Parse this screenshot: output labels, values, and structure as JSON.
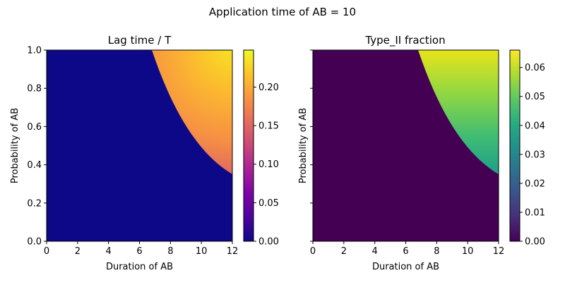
{
  "figure": {
    "suptitle": "Application time of AB = 10"
  },
  "chart_data": [
    {
      "type": "heatmap",
      "title": "Lag time / T",
      "xlabel": "Duration of AB",
      "ylabel": "Probability of AB",
      "xlim": [
        0,
        12
      ],
      "ylim": [
        0,
        1
      ],
      "xticks": [
        "0",
        "2",
        "4",
        "6",
        "8",
        "10",
        "12"
      ],
      "yticks": [
        "0.0",
        "0.2",
        "0.4",
        "0.6",
        "0.8",
        "1.0"
      ],
      "colormap": "plasma",
      "colorbar": {
        "range": [
          0,
          0.248
        ],
        "ticks": [
          "0.00",
          "0.05",
          "0.10",
          "0.15",
          "0.20"
        ]
      },
      "region_boundary": {
        "x": [
          6.8,
          7.5,
          8,
          9,
          10,
          11,
          12
        ],
        "y": [
          1.0,
          0.84,
          0.75,
          0.61,
          0.51,
          0.42,
          0.35
        ]
      },
      "inside_region": {
        "value_at_boundary": 0.13,
        "value_at_corner_12_1": 0.248
      },
      "outside_region_value": 0.0
    },
    {
      "type": "heatmap",
      "title": "Type_II fraction",
      "xlabel": "Duration of AB",
      "ylabel": "Probability of AB",
      "xlim": [
        0,
        12
      ],
      "ylim": [
        0,
        1
      ],
      "xticks": [
        "0",
        "2",
        "4",
        "6",
        "8",
        "10",
        "12"
      ],
      "yticks": [
        "0.0",
        "0.2",
        "0.4",
        "0.6",
        "0.8",
        "1.0"
      ],
      "colormap": "viridis",
      "colorbar": {
        "range": [
          0,
          0.066
        ],
        "ticks": [
          "0.00",
          "0.01",
          "0.02",
          "0.03",
          "0.04",
          "0.05",
          "0.06"
        ]
      },
      "region_boundary": {
        "x": [
          6.8,
          7.5,
          8,
          9,
          10,
          11,
          12
        ],
        "y": [
          1.0,
          0.84,
          0.75,
          0.61,
          0.51,
          0.42,
          0.35
        ]
      },
      "inside_region": {
        "value_at_p_0_35": 0.029,
        "value_at_p_1_0": 0.066
      },
      "outside_region_value": 0.0
    }
  ]
}
